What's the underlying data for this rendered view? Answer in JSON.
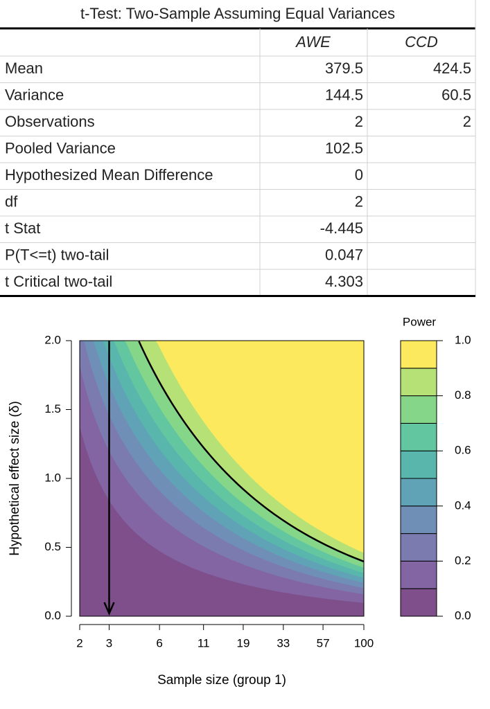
{
  "table": {
    "title": "t-Test: Two-Sample Assuming Equal Variances",
    "columns": [
      "AWE",
      "CCD"
    ],
    "rows": [
      [
        "Mean",
        379.5,
        424.5
      ],
      [
        "Variance",
        144.5,
        60.5
      ],
      [
        "Observations",
        2,
        2
      ],
      [
        "Pooled Variance",
        102.5
      ],
      [
        "Hypothesized Mean Difference",
        0
      ],
      [
        "df",
        2
      ],
      [
        "t Stat",
        -4.445
      ],
      [
        "P(T<=t) two-tail",
        0.047
      ],
      [
        "t Critical two-tail",
        4.303
      ]
    ]
  },
  "chart_data": {
    "type": "contour",
    "x_label": "Sample size (group 1)",
    "y_label": "Hypothetical effect size (δ)",
    "xscale": "log",
    "xlim": [
      2,
      100
    ],
    "xticks": [
      2,
      3,
      6,
      11,
      19,
      33,
      57,
      100
    ],
    "ylim": [
      0,
      2
    ],
    "yticks": [
      {
        "value": 0,
        "label": "0.0"
      },
      0.5,
      {
        "value": 1,
        "label": "1.0"
      },
      1.5,
      {
        "value": 2,
        "label": "2.0"
      }
    ],
    "line_level": 0.8,
    "line_color": "#000000",
    "arrow_x": 3,
    "colorbar": {
      "title": "Power",
      "levels": [
        0,
        0.1,
        0.2,
        0.3,
        0.4,
        0.5,
        0.6,
        0.7,
        0.8,
        0.9,
        1
      ],
      "colors": [
        "#7f4f8c",
        "#8265a2",
        "#7b7bb0",
        "#6f8fb7",
        "#61a3b6",
        "#58b6ad",
        "#62c7a0",
        "#86d68a",
        "#b6e176",
        "#fce95d"
      ],
      "ticks": [
        {
          "value": 0,
          "label": "0.0"
        },
        0.2,
        0.4,
        0.6,
        0.8,
        {
          "value": 1,
          "label": "1.0"
        }
      ]
    }
  }
}
